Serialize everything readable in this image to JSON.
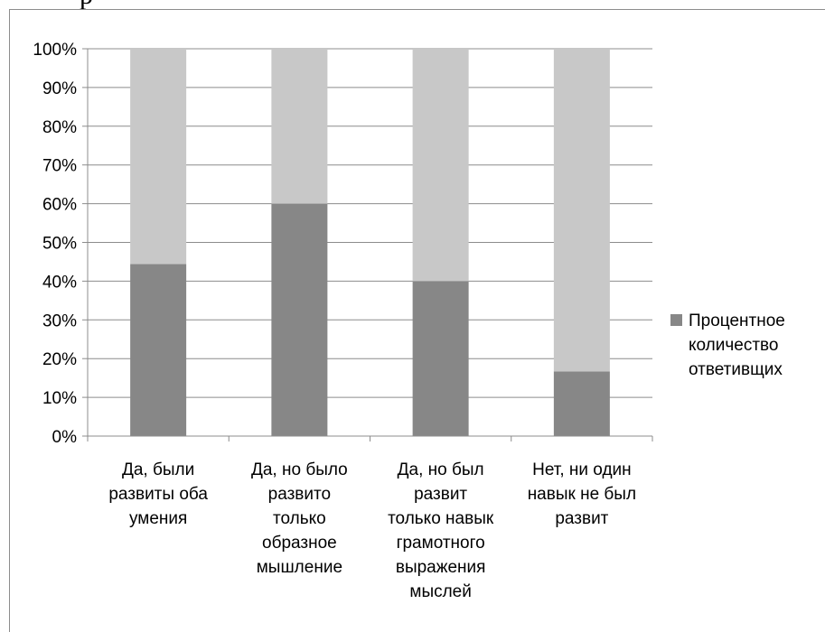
{
  "page_fragment": "р",
  "chart_data": {
    "type": "bar",
    "stacked": true,
    "categories": [
      [
        "Да, были",
        "развиты оба",
        "умения"
      ],
      [
        "Да, но было",
        "развито",
        "только",
        "образное",
        "мышление"
      ],
      [
        "Да, но был",
        "развит",
        "только навык",
        "грамотного",
        "выражения",
        "мыслей"
      ],
      [
        "Нет, ни один",
        "навык не был",
        "развит"
      ]
    ],
    "series": [
      {
        "name": "Процентное количество ответивщих",
        "values": [
          44.4,
          60,
          40,
          16.7
        ],
        "color": "#878787"
      },
      {
        "name": "",
        "values": [
          55.6,
          40,
          60,
          83.3
        ],
        "color": "#c8c8c8"
      }
    ],
    "legend": {
      "lines": [
        "Процентное",
        "количество",
        "ответивщих"
      ],
      "placement": "right"
    },
    "ylim": [
      0,
      100
    ],
    "yticks": [
      "0%",
      "10%",
      "20%",
      "30%",
      "40%",
      "50%",
      "60%",
      "70%",
      "80%",
      "90%",
      "100%"
    ],
    "grid": true
  }
}
